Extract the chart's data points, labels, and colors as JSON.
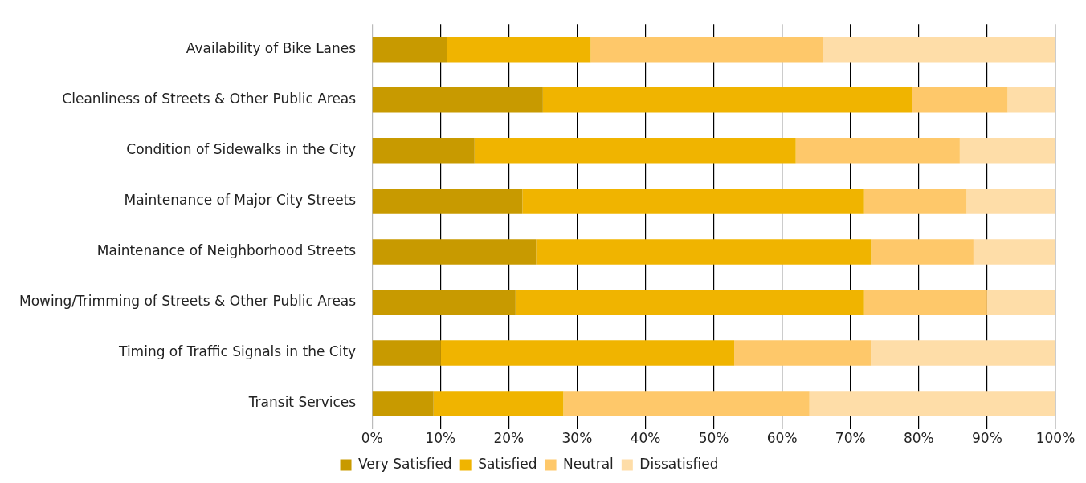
{
  "chart_data": {
    "type": "bar",
    "orientation": "horizontal",
    "stacked": true,
    "categories": [
      "Availability of Bike Lanes",
      "Cleanliness of Streets & Other Public Areas",
      "Condition of Sidewalks in the City",
      "Maintenance of Major City Streets",
      "Maintenance of Neighborhood Streets",
      "Mowing/Trimming of Streets & Other Public Areas",
      "Timing of Traffic Signals in the City",
      "Transit Services"
    ],
    "series": [
      {
        "name": "Very Satisfied",
        "color": "#c89a00",
        "values": [
          11,
          25,
          15,
          22,
          24,
          21,
          10,
          9
        ]
      },
      {
        "name": "Satisfied",
        "color": "#f0b400",
        "values": [
          21,
          54,
          47,
          50,
          49,
          51,
          43,
          19
        ]
      },
      {
        "name": "Neutral",
        "color": "#fec86a",
        "values": [
          34,
          14,
          24,
          15,
          15,
          18,
          20,
          36
        ]
      },
      {
        "name": "Dissatisfied",
        "color": "#fedda8",
        "values": [
          34,
          7,
          14,
          13,
          12,
          10,
          27,
          36
        ]
      }
    ],
    "xlim": [
      0,
      100
    ],
    "xticks": [
      {
        "value": 0,
        "label": "0%"
      },
      {
        "value": 10,
        "label": "10%"
      },
      {
        "value": 20,
        "label": "20%"
      },
      {
        "value": 30,
        "label": "30%"
      },
      {
        "value": 40,
        "label": "40%"
      },
      {
        "value": 50,
        "label": "50%"
      },
      {
        "value": 60,
        "label": "60%"
      },
      {
        "value": 70,
        "label": "70%"
      },
      {
        "value": 80,
        "label": "80%"
      },
      {
        "value": 90,
        "label": "90%"
      },
      {
        "value": 100,
        "label": "100%"
      }
    ],
    "grid": "x",
    "legend": "bottom"
  }
}
